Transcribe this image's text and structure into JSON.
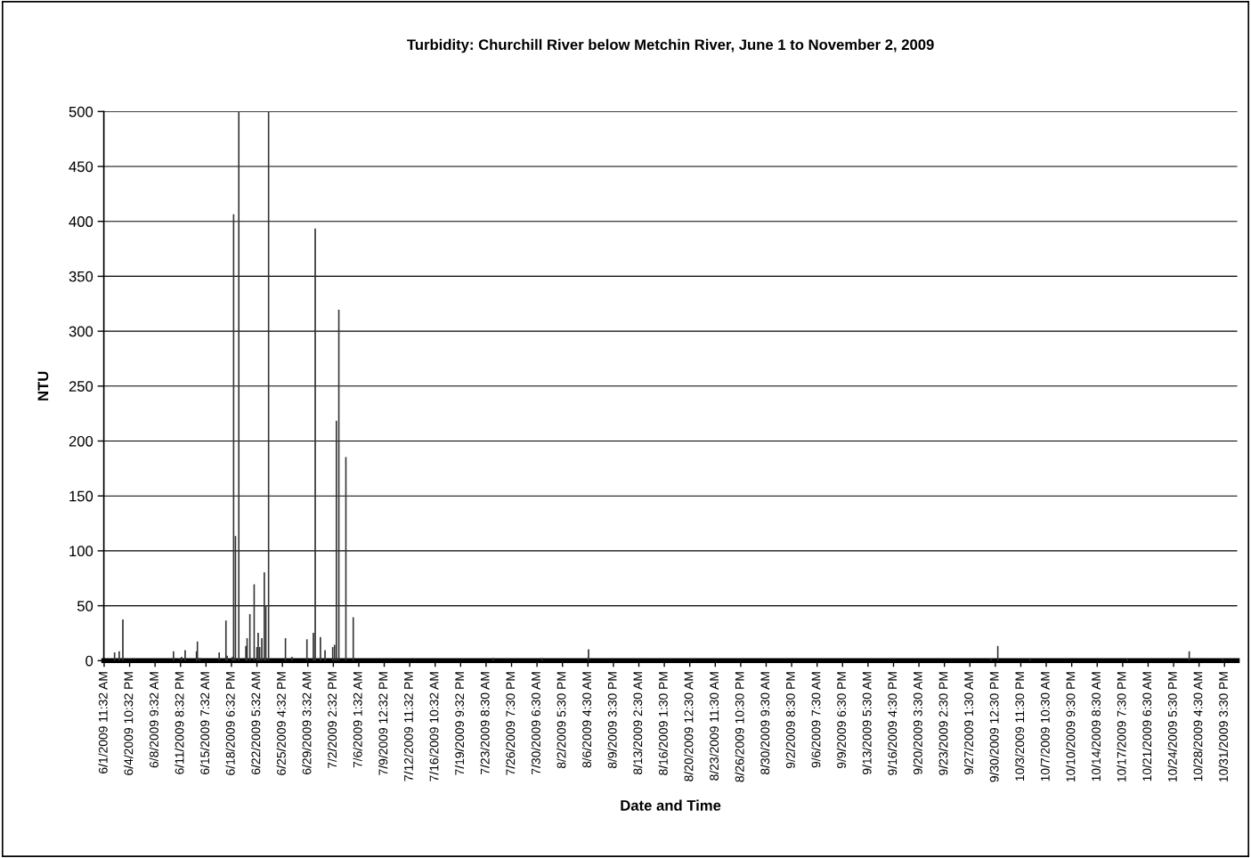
{
  "chart_data": {
    "type": "bar",
    "title": "Turbidity: Churchill River below Metchin River, June 1 to November 2, 2009",
    "xlabel": "Date and Time",
    "ylabel": "NTU",
    "x": [
      "2009-06-02T21:32",
      "2009-06-03T12:32",
      "2009-06-04T00:32",
      "2009-06-10T21:32",
      "2009-06-11T23:32",
      "2009-06-12T11:32",
      "2009-06-14T00:32",
      "2009-06-14T03:32",
      "2009-06-14T11:32",
      "2009-06-17T02:32",
      "2009-06-18T00:32",
      "2009-06-18T04:32",
      "2009-06-18T21:32",
      "2009-06-19T01:32",
      "2009-06-19T07:32",
      "2009-06-19T18:32",
      "2009-06-20T17:32",
      "2009-06-20T21:32",
      "2009-06-21T06:32",
      "2009-06-21T20:32",
      "2009-06-22T05:32",
      "2009-06-22T09:32",
      "2009-06-22T14:32",
      "2009-06-22T21:32",
      "2009-06-23T05:32",
      "2009-06-23T10:32",
      "2009-06-23T19:32",
      "2009-06-26T02:32",
      "2009-06-26T23:32",
      "2009-06-29T00:32",
      "2009-06-29T21:32",
      "2009-06-30T03:32",
      "2009-06-30T20:32",
      "2009-07-01T11:32",
      "2009-07-02T12:32",
      "2009-07-02T18:32",
      "2009-07-03T00:32",
      "2009-07-03T08:32",
      "2009-07-04T07:32",
      "2009-07-05T07:32",
      "2009-07-24T07:32",
      "2009-07-30T23:32",
      "2009-08-06T06:32",
      "2009-09-29T22:32",
      "2009-09-30T20:32",
      "2009-10-05T05:32",
      "2009-10-18T10:32",
      "2009-10-26T20:32",
      "2009-10-31T09:32"
    ],
    "values": [
      7,
      8,
      37,
      8,
      3,
      9,
      8,
      17,
      2,
      7,
      36,
      4,
      3,
      406,
      113,
      500,
      13,
      20,
      42,
      69,
      12,
      25,
      12,
      20,
      80,
      50,
      500,
      20,
      3,
      19,
      25,
      393,
      21,
      9,
      12,
      14,
      218,
      319,
      185,
      39,
      2,
      2,
      10,
      1,
      13,
      1,
      1,
      8,
      1
    ],
    "color": "#333333",
    "xlim": [
      "2009-06-01T10:30",
      "2009-11-02T09:00"
    ],
    "xticks": [
      {
        "value": "2009-06-01T11:32",
        "label": "6/1/2009 11:32 AM"
      },
      {
        "value": "2009-06-04T22:32",
        "label": "6/4/2009 10:32 PM"
      },
      {
        "value": "2009-06-08T09:32",
        "label": "6/8/2009 9:32 AM"
      },
      {
        "value": "2009-06-11T20:32",
        "label": "6/11/2009 8:32 PM"
      },
      {
        "value": "2009-06-15T07:32",
        "label": "6/15/2009 7:32 AM"
      },
      {
        "value": "2009-06-18T18:32",
        "label": "6/18/2009 6:32 PM"
      },
      {
        "value": "2009-06-22T05:32",
        "label": "6/22/2009 5:32 AM"
      },
      {
        "value": "2009-06-25T16:32",
        "label": "6/25/2009 4:32 PM"
      },
      {
        "value": "2009-06-29T03:32",
        "label": "6/29/2009 3:32 AM"
      },
      {
        "value": "2009-07-02T14:32",
        "label": "7/2/2009 2:32 PM"
      },
      {
        "value": "2009-07-06T01:32",
        "label": "7/6/2009 1:32 AM"
      },
      {
        "value": "2009-07-09T12:32",
        "label": "7/9/2009 12:32 PM"
      },
      {
        "value": "2009-07-12T23:32",
        "label": "7/12/2009 11:32 PM"
      },
      {
        "value": "2009-07-16T10:32",
        "label": "7/16/2009 10:32 AM"
      },
      {
        "value": "2009-07-19T21:32",
        "label": "7/19/2009 9:32 PM"
      },
      {
        "value": "2009-07-23T08:30",
        "label": "7/23/2009 8:30 AM"
      },
      {
        "value": "2009-07-26T19:30",
        "label": "7/26/2009 7:30 PM"
      },
      {
        "value": "2009-07-30T06:30",
        "label": "7/30/2009 6:30 AM"
      },
      {
        "value": "2009-08-02T17:30",
        "label": "8/2/2009 5:30 PM"
      },
      {
        "value": "2009-08-06T04:30",
        "label": "8/6/2009 4:30 AM"
      },
      {
        "value": "2009-08-09T15:30",
        "label": "8/9/2009 3:30 PM"
      },
      {
        "value": "2009-08-13T02:30",
        "label": "8/13/2009 2:30 AM"
      },
      {
        "value": "2009-08-16T13:30",
        "label": "8/16/2009 1:30 PM"
      },
      {
        "value": "2009-08-20T00:30",
        "label": "8/20/2009 12:30 AM"
      },
      {
        "value": "2009-08-23T11:30",
        "label": "8/23/2009 11:30 AM"
      },
      {
        "value": "2009-08-26T22:30",
        "label": "8/26/2009 10:30 PM"
      },
      {
        "value": "2009-08-30T09:30",
        "label": "8/30/2009 9:30 AM"
      },
      {
        "value": "2009-09-02T20:30",
        "label": "9/2/2009 8:30 PM"
      },
      {
        "value": "2009-09-06T07:30",
        "label": "9/6/2009 7:30 AM"
      },
      {
        "value": "2009-09-09T18:30",
        "label": "9/9/2009 6:30 PM"
      },
      {
        "value": "2009-09-13T05:30",
        "label": "9/13/2009 5:30 AM"
      },
      {
        "value": "2009-09-16T16:30",
        "label": "9/16/2009 4:30 PM"
      },
      {
        "value": "2009-09-20T03:30",
        "label": "9/20/2009 3:30 AM"
      },
      {
        "value": "2009-09-23T14:30",
        "label": "9/23/2009 2:30 PM"
      },
      {
        "value": "2009-09-27T01:30",
        "label": "9/27/2009 1:30 AM"
      },
      {
        "value": "2009-09-30T12:30",
        "label": "9/30/2009 12:30 PM"
      },
      {
        "value": "2009-10-03T23:30",
        "label": "10/3/2009 11:30 PM"
      },
      {
        "value": "2009-10-07T10:30",
        "label": "10/7/2009 10:30 AM"
      },
      {
        "value": "2009-10-10T21:30",
        "label": "10/10/2009 9:30 PM"
      },
      {
        "value": "2009-10-14T08:30",
        "label": "10/14/2009 8:30 AM"
      },
      {
        "value": "2009-10-17T19:30",
        "label": "10/17/2009 7:30 PM"
      },
      {
        "value": "2009-10-21T06:30",
        "label": "10/21/2009 6:30 AM"
      },
      {
        "value": "2009-10-24T17:30",
        "label": "10/24/2009 5:30 PM"
      },
      {
        "value": "2009-10-28T04:30",
        "label": "10/28/2009 4:30 AM"
      },
      {
        "value": "2009-10-31T15:30",
        "label": "10/31/2009 3:30 PM"
      }
    ],
    "ylim": [
      0,
      500
    ],
    "yticks": [
      0,
      50,
      100,
      150,
      200,
      250,
      300,
      350,
      400,
      450,
      500
    ],
    "grid": "y"
  }
}
